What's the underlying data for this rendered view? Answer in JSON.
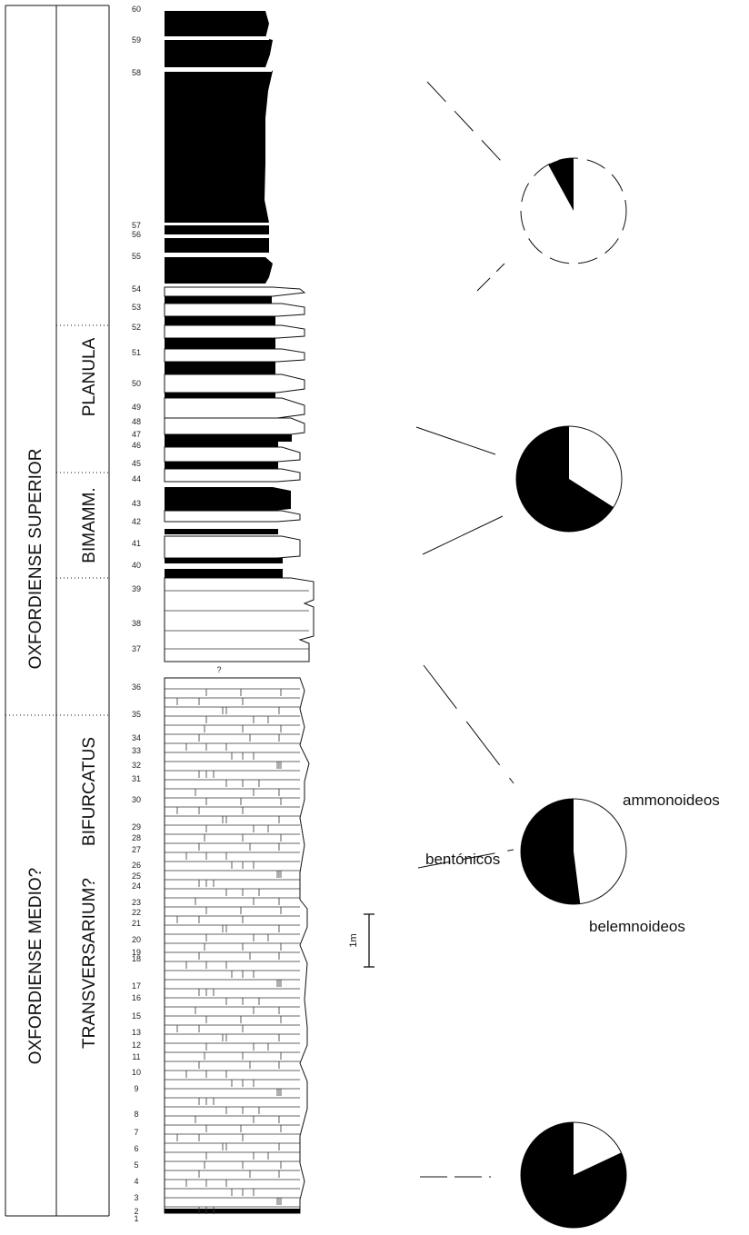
{
  "column": {
    "stage_upper": "OXFORDIENSE SUPERIOR",
    "stage_middle": "OXFORDIENSE MEDIO?",
    "zones": {
      "planula": "PLANULA",
      "bimammatum": "BIMAMM.",
      "bifurcatus": "BIFURCATUS",
      "transversarium": "TRANSVERSARIUM?"
    },
    "uncertain_mark": "?",
    "scale_label": "1m",
    "bed_numbers": [
      "60",
      "59",
      "58",
      "57",
      "56",
      "55",
      "54",
      "53",
      "52",
      "51",
      "50",
      "49",
      "48",
      "47",
      "46",
      "45",
      "44",
      "43",
      "42",
      "41",
      "40",
      "39",
      "38",
      "37",
      "36",
      "35",
      "34",
      "33",
      "32",
      "31",
      "30",
      "29",
      "28",
      "27",
      "26",
      "25",
      "24",
      "23",
      "22",
      "21",
      "20",
      "19",
      "18",
      "17",
      "16",
      "15",
      "13",
      "12",
      "11",
      "10",
      "9",
      "8",
      "7",
      "6",
      "5",
      "4",
      "3",
      "2",
      "1"
    ]
  },
  "pies": [
    {
      "id": "pie-1",
      "black_fraction": 0.08,
      "white_fraction": 0.92
    },
    {
      "id": "pie-2",
      "black_fraction": 0.66,
      "white_fraction": 0.34
    },
    {
      "id": "pie-3",
      "black_fraction": 0.52,
      "white_fraction": 0.48
    },
    {
      "id": "pie-4",
      "black_fraction": 0.82,
      "white_fraction": 0.18
    }
  ],
  "legend": {
    "ammonoids": "ammonoideos",
    "benthics": "bentónicos",
    "belemnoids": "belemnoideos"
  }
}
